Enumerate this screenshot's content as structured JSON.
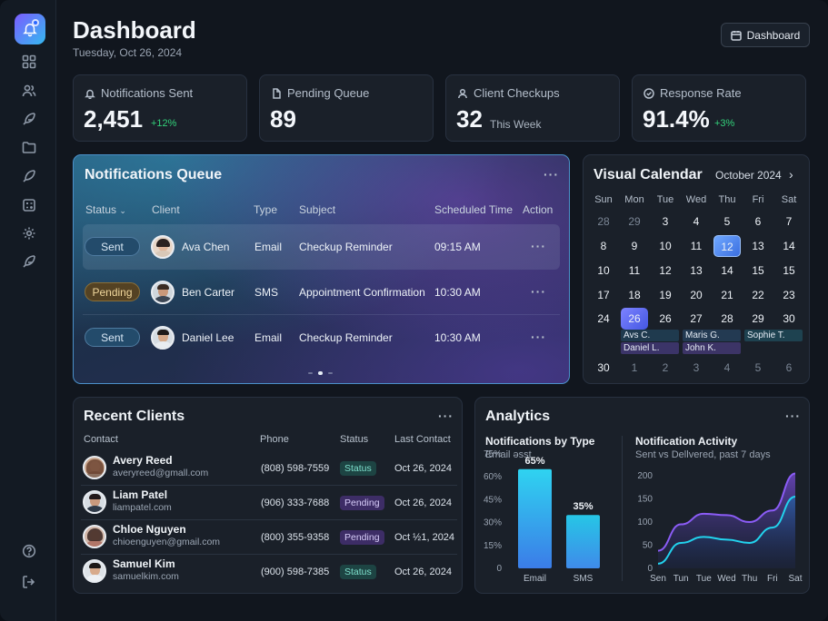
{
  "header": {
    "title": "Dashboard",
    "date": "Tuesday, Oct 26, 2024",
    "button_label": "Dashboard"
  },
  "sidebar": {
    "items": [
      "grid-icon",
      "users-icon",
      "feather-icon",
      "folder-icon",
      "leaf-icon",
      "calculator-icon",
      "gear-icon",
      "feather-icon-2"
    ],
    "bottom": [
      "help-icon",
      "logout-icon"
    ]
  },
  "stats": [
    {
      "label": "Notifications Sent",
      "value": "2,451",
      "sub": "+12%",
      "sub_color": "#33d17a"
    },
    {
      "label": "Pending Queue",
      "value": "89",
      "sub": "",
      "sub_color": "#9aa4b2"
    },
    {
      "label": "Client Checkups",
      "value": "32",
      "sub": "This Week",
      "sub_color": "#aab4c0"
    },
    {
      "label": "Response Rate",
      "value": "91.4%",
      "sub": "+3%",
      "sub_color": "#33d17a"
    }
  ],
  "queue": {
    "title": "Notifications Queue",
    "columns": [
      "Status",
      "Client",
      "Type",
      "Subject",
      "Scheduled Time",
      "Action"
    ],
    "rows": [
      {
        "status": "Sent",
        "client": "Ava Chen",
        "type": "Email",
        "subject": "Checkup Reminder",
        "time": "09:15 AM",
        "action": "···"
      },
      {
        "status": "Pending",
        "client": "Ben Carter",
        "type": "SMS",
        "subject": "Appointment Confirmation",
        "time": "10:30 AM",
        "action": "···"
      },
      {
        "status": "Sent",
        "client": "Daniel Lee",
        "type": "Email",
        "subject": "Checkup Reminder",
        "time": "10:30 AM",
        "action": "···"
      }
    ]
  },
  "calendar": {
    "title": "Visual Calendar",
    "month": "October 2024",
    "dows": [
      "Sun",
      "Mon",
      "Tue",
      "Wed",
      "Thu",
      "Fri",
      "Sat"
    ],
    "weeks": [
      [
        "28",
        "29",
        "3",
        "4",
        "5",
        "6",
        "7"
      ],
      [
        "8",
        "9",
        "10",
        "11",
        "12",
        "13",
        "14"
      ],
      [
        "10",
        "11",
        "12",
        "13",
        "14",
        "15",
        "15"
      ],
      [
        "17",
        "18",
        "19",
        "20",
        "21",
        "22",
        "23"
      ],
      [
        "24",
        "26",
        "26",
        "27",
        "28",
        "29",
        "30"
      ],
      [
        "30",
        "1",
        "2",
        "3",
        "4",
        "5",
        "6"
      ]
    ],
    "events": [
      "Avs C.",
      "Maris G.",
      "Sophie T.",
      "Daniel L.",
      "John K."
    ]
  },
  "clients": {
    "title": "Recent Clients",
    "columns": [
      "Contact",
      "Phone",
      "Status",
      "Last Contact"
    ],
    "rows": [
      {
        "name": "Avery Reed",
        "email": "averyreed@gmall.com",
        "phone": "(808) 598-7559",
        "status": "Status",
        "date": "Oct 26, 2024"
      },
      {
        "name": "Liam Patel",
        "email": "liampatel.com",
        "phone": "(906) 333-7688",
        "status": "Pending",
        "date": "Oct 26, 2024"
      },
      {
        "name": "Chloe Nguyen",
        "email": "chioenguyen@gmail.com",
        "phone": "(800) 355-9358",
        "status": "Pending",
        "date": "Oct ½1, 2024"
      },
      {
        "name": "Samuel Kim",
        "email": "samuelkim.com",
        "phone": "(900) 598-7385",
        "status": "Status",
        "date": "Oct 26, 2024"
      }
    ]
  },
  "analytics": {
    "title": "Analytics",
    "bar_title": "Notifications by Type",
    "bar_desc": "Email əsst",
    "line_title": "Notification Activity",
    "line_desc": "Sent vs Dellvered, past 7 days"
  },
  "chart_data": [
    {
      "type": "bar",
      "title": "Notifications by Type",
      "categories": [
        "Email",
        "SMS"
      ],
      "values": [
        65,
        35
      ],
      "data_labels": [
        "65%",
        "35%"
      ],
      "y_ticks": [
        "0",
        "15%",
        "30%",
        "45%",
        "60%",
        "75%"
      ],
      "ylim": [
        0,
        75
      ],
      "colors": [
        "#2f8fe8",
        "#1ec3e0"
      ]
    },
    {
      "type": "area",
      "title": "Notification Activity",
      "categories": [
        "Sen",
        "Tun",
        "Tue",
        "Wed",
        "Thu",
        "Fri",
        "Sat"
      ],
      "series": [
        {
          "values": [
            38,
            95,
            118,
            115,
            100,
            125,
            205
          ],
          "color": "#8b5cf6"
        },
        {
          "values": [
            10,
            55,
            68,
            62,
            55,
            88,
            155
          ],
          "color": "#22d3ee"
        }
      ],
      "y_ticks": [
        "0",
        "50",
        "100",
        "150",
        "200"
      ],
      "ylim": [
        0,
        200
      ]
    }
  ]
}
